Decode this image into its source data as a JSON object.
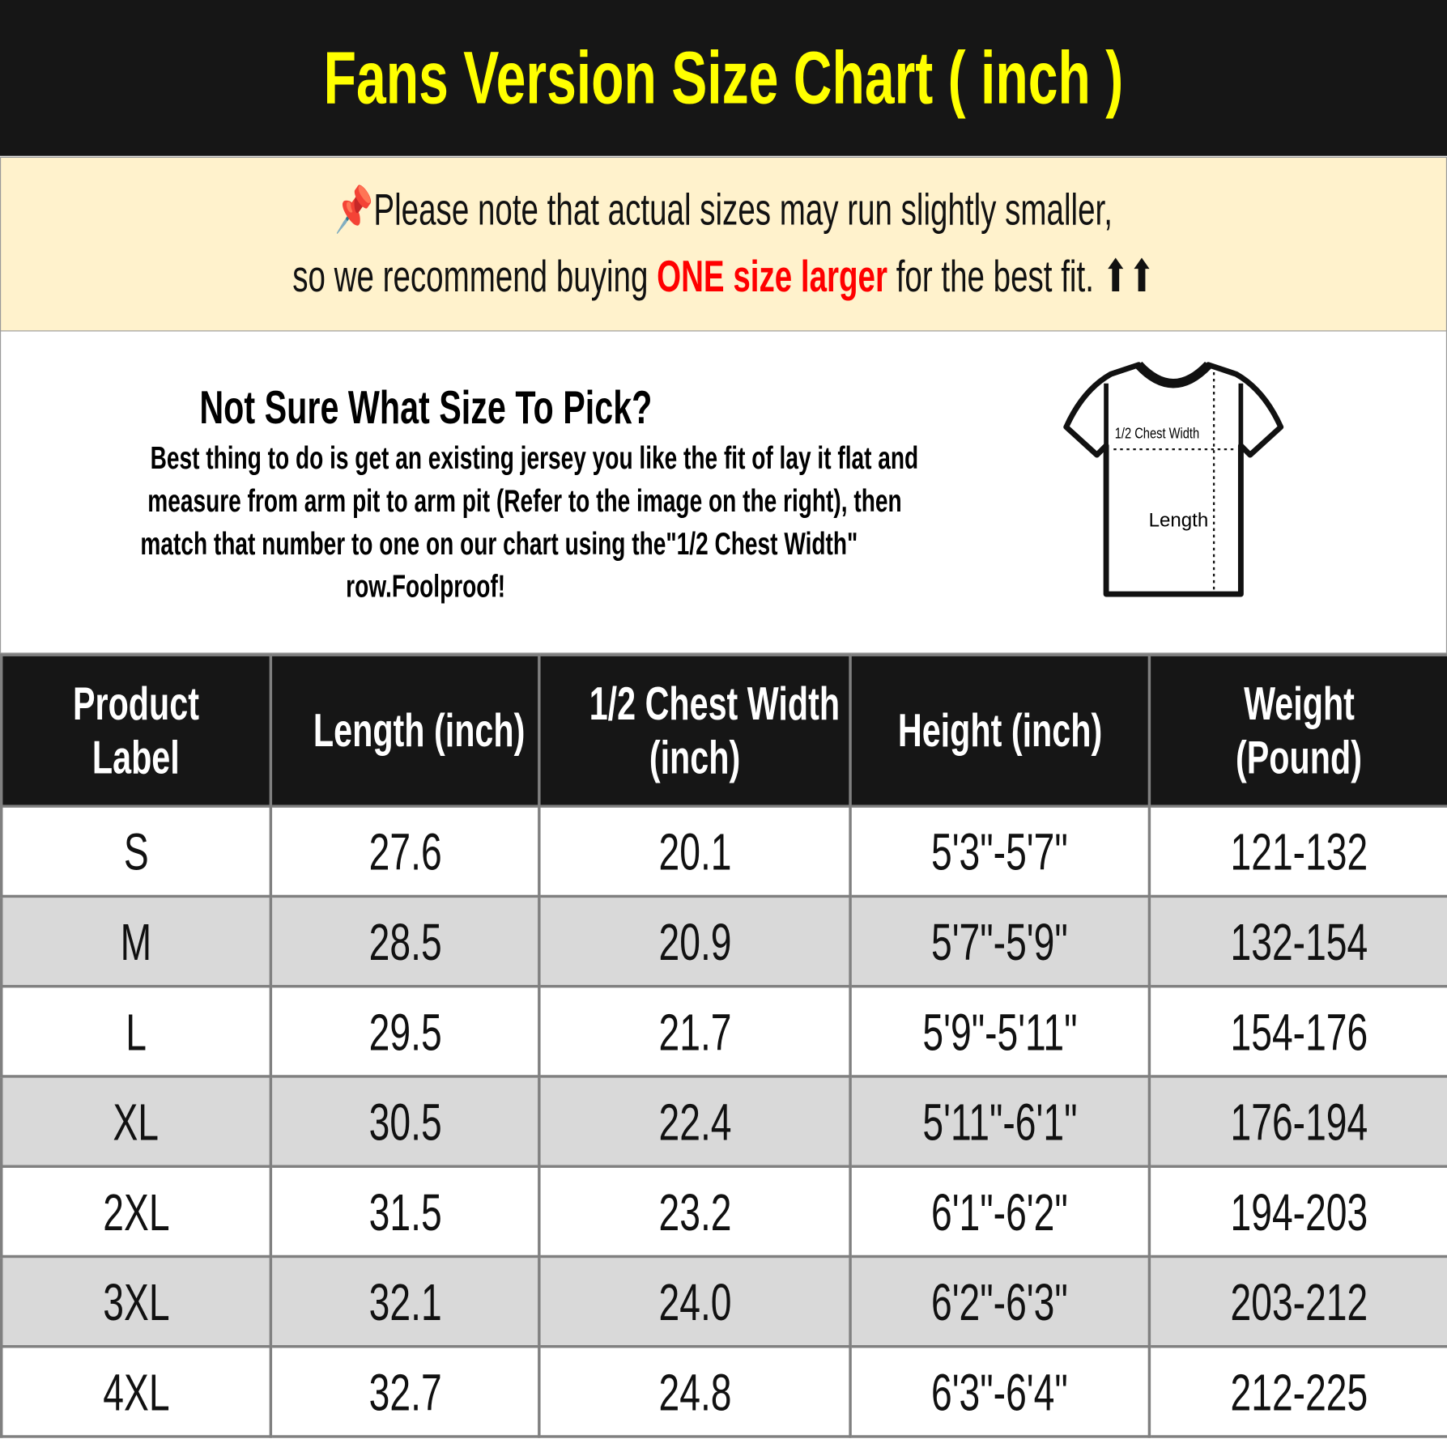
{
  "title": "Fans Version Size Chart ( inch )",
  "notice": {
    "icon": "pushpin-icon",
    "line1": "Please note that actual sizes may run slightly smaller,",
    "line2_prefix": "so we recommend buying ",
    "line2_highlight": "ONE size larger",
    "line2_suffix": " for the best fit. ⬆⬆",
    "highlight_color": "#ff0000"
  },
  "info": {
    "heading": "Not Sure What Size To Pick?",
    "lines": [
      "Best thing to do is get an existing jersey you like the fit of lay it flat and",
      "measure from arm pit to arm pit (Refer to the image on the right), then",
      "match that number to one on our chart using the\"1/2 Chest Width\"",
      "row.Foolproof!"
    ],
    "diagram": {
      "chest_label": "1/2 Chest Width",
      "length_label": "Length"
    }
  },
  "table": {
    "headers": [
      [
        "Product",
        "Label"
      ],
      [
        "Length (inch)"
      ],
      [
        "1/2 Chest Width",
        "(inch)"
      ],
      [
        "Height (inch)"
      ],
      [
        "Weight",
        "(Pound)"
      ]
    ],
    "rows": [
      [
        "S",
        "27.6",
        "20.1",
        "5'3\"-5'7\"",
        "121-132"
      ],
      [
        "M",
        "28.5",
        "20.9",
        "5'7\"-5'9\"",
        "132-154"
      ],
      [
        "L",
        "29.5",
        "21.7",
        "5'9\"-5'11\"",
        "154-176"
      ],
      [
        "XL",
        "30.5",
        "22.4",
        "5'11\"-6'1\"",
        "176-194"
      ],
      [
        "2XL",
        "31.5",
        "23.2",
        "6'1\"-6'2\"",
        "194-203"
      ],
      [
        "3XL",
        "32.1",
        "24.0",
        "6'2\"-6'3\"",
        "203-212"
      ],
      [
        "4XL",
        "32.7",
        "24.8",
        "6'3\"-6'4\"",
        "212-225"
      ]
    ]
  },
  "colors": {
    "title_text": "#ffff00",
    "band_bg": "#161616",
    "notice_bg": "#fff2cc",
    "alt_row": "#d9d9d9"
  }
}
